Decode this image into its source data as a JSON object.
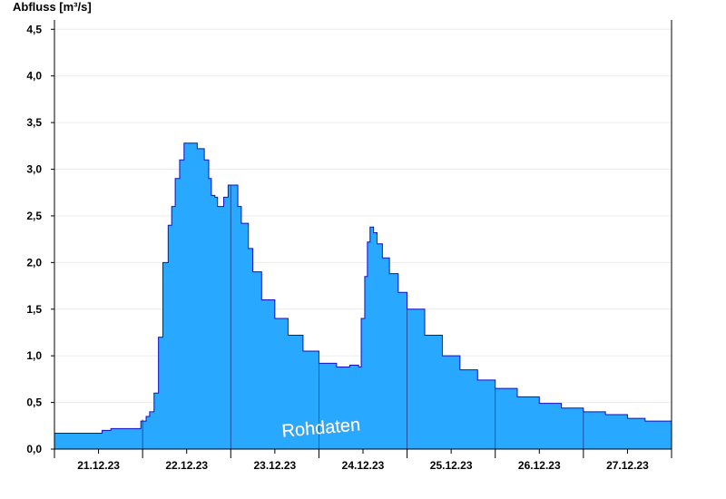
{
  "chart_data": {
    "type": "area",
    "ylabel": "Abfluss [m³/s]",
    "ylim": [
      0,
      4.6
    ],
    "y_ticks": [
      0.0,
      0.5,
      1.0,
      1.5,
      2.0,
      2.5,
      3.0,
      3.5,
      4.0,
      4.5
    ],
    "y_tick_labels": [
      "0,0",
      "0,5",
      "1,0",
      "1,5",
      "2,0",
      "2,5",
      "3,0",
      "3,5",
      "4,0",
      "4,5"
    ],
    "xlim_days": [
      0,
      7
    ],
    "day_labels": [
      "21.12.23",
      "22.12.23",
      "23.12.23",
      "24.12.23",
      "25.12.23",
      "26.12.23",
      "27.12.23"
    ],
    "watermark": "Rohdaten",
    "fill_color": "#28a8ff",
    "line_color": "#1010c8",
    "series": [
      {
        "x": [
          0.0,
          0.5,
          0.54,
          0.64,
          0.95,
          0.98,
          1.04,
          1.08,
          1.13,
          1.18,
          1.23,
          1.29,
          1.33,
          1.37,
          1.42,
          1.47,
          1.55,
          1.62,
          1.7,
          1.75,
          1.78,
          1.82,
          1.85,
          1.88,
          1.92,
          1.97,
          2.02,
          2.08,
          2.12,
          2.2,
          2.25,
          2.35,
          2.5,
          2.65,
          2.82,
          3.0,
          3.2,
          3.35,
          3.45,
          3.48,
          3.52,
          3.55,
          3.58,
          3.62,
          3.66,
          3.72,
          3.8,
          3.9,
          4.0,
          4.2,
          4.4,
          4.6,
          4.8,
          5.0,
          5.25,
          5.5,
          5.75,
          6.0,
          6.25,
          6.5,
          6.7,
          6.96,
          7.0
        ],
        "y": [
          0.17,
          0.17,
          0.2,
          0.22,
          0.22,
          0.3,
          0.35,
          0.4,
          0.6,
          1.2,
          2.0,
          2.4,
          2.6,
          2.9,
          3.1,
          3.28,
          3.28,
          3.22,
          3.1,
          2.9,
          2.72,
          2.7,
          2.6,
          2.6,
          2.7,
          2.83,
          2.83,
          2.6,
          2.42,
          2.15,
          1.9,
          1.6,
          1.4,
          1.22,
          1.05,
          0.92,
          0.88,
          0.9,
          0.88,
          1.4,
          1.85,
          2.22,
          2.38,
          2.32,
          2.2,
          2.05,
          1.88,
          1.68,
          1.5,
          1.22,
          1.0,
          0.85,
          0.74,
          0.65,
          0.56,
          0.49,
          0.44,
          0.4,
          0.37,
          0.33,
          0.3,
          0.3,
          0.27
        ]
      }
    ]
  }
}
